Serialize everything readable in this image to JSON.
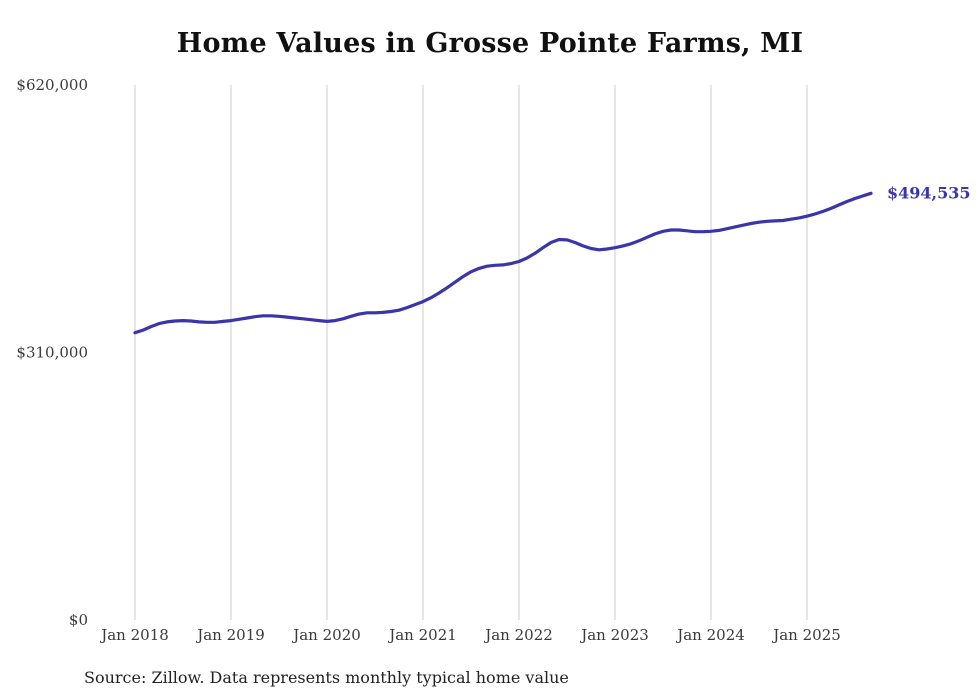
{
  "page": {
    "title": "Home Values in Grosse Pointe Farms, MI",
    "source_note": "Source: Zillow. Data represents monthly typical home value"
  },
  "colors": {
    "line": "#3a35aa",
    "grid": "#cccccc",
    "axis_text": "#3a3a3a",
    "end_label": "#3a35aa",
    "title_text": "#111111",
    "source_text": "#222222",
    "background": "#ffffff"
  },
  "end_annotation": "$494,535",
  "chart_data": {
    "type": "line",
    "title": "Home Values in Grosse Pointe Farms, MI",
    "xlabel": "",
    "ylabel": "",
    "ylim": [
      0,
      620000
    ],
    "grid": "vertical-only",
    "legend": "none",
    "series_name": "Typical home value",
    "end_label": "$494,535",
    "end_value": 494535,
    "yticks": [
      {
        "value": 0,
        "label": "$0"
      },
      {
        "value": 310000,
        "label": "$310,000"
      },
      {
        "value": 620000,
        "label": "$620,000"
      }
    ],
    "xticks": [
      "Jan 2018",
      "Jan 2019",
      "Jan 2020",
      "Jan 2021",
      "Jan 2022",
      "Jan 2023",
      "Jan 2024",
      "Jan 2025"
    ],
    "x": [
      "2018-01",
      "2018-02",
      "2018-03",
      "2018-04",
      "2018-05",
      "2018-06",
      "2018-07",
      "2018-08",
      "2018-09",
      "2018-10",
      "2018-11",
      "2018-12",
      "2019-01",
      "2019-02",
      "2019-03",
      "2019-04",
      "2019-05",
      "2019-06",
      "2019-07",
      "2019-08",
      "2019-09",
      "2019-10",
      "2019-11",
      "2019-12",
      "2020-01",
      "2020-02",
      "2020-03",
      "2020-04",
      "2020-05",
      "2020-06",
      "2020-07",
      "2020-08",
      "2020-09",
      "2020-10",
      "2020-11",
      "2020-12",
      "2021-01",
      "2021-02",
      "2021-03",
      "2021-04",
      "2021-05",
      "2021-06",
      "2021-07",
      "2021-08",
      "2021-09",
      "2021-10",
      "2021-11",
      "2021-12",
      "2022-01",
      "2022-02",
      "2022-03",
      "2022-04",
      "2022-05",
      "2022-06",
      "2022-07",
      "2022-08",
      "2022-09",
      "2022-10",
      "2022-11",
      "2022-12",
      "2023-01",
      "2023-02",
      "2023-03",
      "2023-04",
      "2023-05",
      "2023-06",
      "2023-07",
      "2023-08",
      "2023-09",
      "2023-10",
      "2023-11",
      "2023-12",
      "2024-01",
      "2024-02",
      "2024-03",
      "2024-04",
      "2024-05",
      "2024-06",
      "2024-07",
      "2024-08",
      "2024-09",
      "2024-10",
      "2024-11",
      "2024-12",
      "2025-01",
      "2025-02",
      "2025-03",
      "2025-04",
      "2025-05",
      "2025-06",
      "2025-07",
      "2025-08",
      "2025-09"
    ],
    "values": [
      333000,
      336000,
      340000,
      343500,
      345500,
      346500,
      347000,
      346500,
      345500,
      345000,
      345000,
      346000,
      347000,
      348500,
      350000,
      351500,
      352500,
      352500,
      352000,
      351000,
      350000,
      349000,
      348000,
      347000,
      346000,
      347000,
      349000,
      352000,
      354500,
      356000,
      356000,
      356500,
      357500,
      359000,
      362000,
      365500,
      369000,
      373500,
      379000,
      385000,
      391500,
      398000,
      403500,
      407500,
      410000,
      411000,
      411500,
      413000,
      415500,
      419500,
      425000,
      431500,
      437500,
      441000,
      440500,
      437500,
      433500,
      430500,
      429000,
      430000,
      431500,
      433500,
      436000,
      439500,
      443500,
      447500,
      450500,
      452000,
      452000,
      451000,
      450000,
      450000,
      450500,
      451500,
      453500,
      455500,
      457500,
      459500,
      461000,
      462000,
      462500,
      463000,
      464500,
      466000,
      468000,
      470500,
      473500,
      477000,
      481000,
      485000,
      488500,
      491500,
      494535
    ]
  }
}
